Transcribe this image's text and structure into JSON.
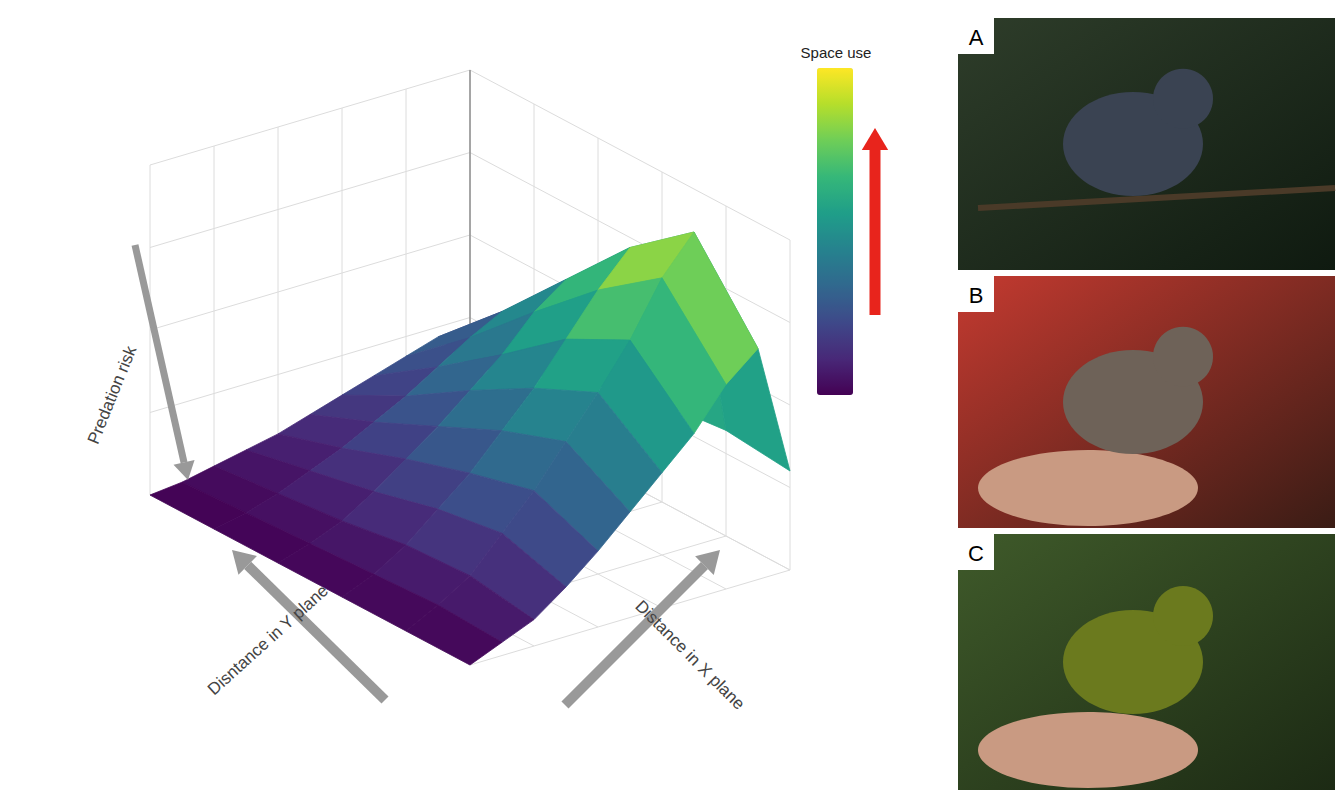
{
  "chart_data": {
    "type": "surface3d",
    "x": [
      0,
      0.1,
      0.2,
      0.3,
      0.4,
      0.5,
      0.6,
      0.7,
      0.8,
      0.9,
      1
    ],
    "y": [
      0,
      0.2,
      0.4,
      0.6,
      0.8,
      1
    ],
    "z": [
      [
        0,
        0.04,
        0.08,
        0.15,
        0.23,
        0.32,
        0.41,
        0.5,
        0.62,
        0.7,
        0.3
      ],
      [
        0,
        0.05,
        0.11,
        0.21,
        0.31,
        0.43,
        0.55,
        0.68,
        0.84,
        0.95,
        0.32
      ],
      [
        0,
        0.04,
        0.1,
        0.18,
        0.26,
        0.36,
        0.46,
        0.58,
        0.7,
        0.8,
        0.3
      ],
      [
        0,
        0.03,
        0.07,
        0.13,
        0.2,
        0.27,
        0.35,
        0.43,
        0.53,
        0.6,
        0.25
      ],
      [
        0,
        0.02,
        0.05,
        0.09,
        0.13,
        0.18,
        0.23,
        0.29,
        0.35,
        0.4,
        0.18
      ],
      [
        0,
        0.01,
        0.03,
        0.05,
        0.07,
        0.1,
        0.13,
        0.16,
        0.19,
        0.22,
        0.1
      ]
    ],
    "xlim": [
      0,
      1
    ],
    "ylim": [
      0,
      1
    ],
    "zlim": [
      0,
      1
    ],
    "xticks": [
      0,
      0.2,
      0.4,
      0.6,
      0.8,
      1
    ],
    "yticks": [
      0,
      0.2,
      0.4,
      0.6,
      0.8,
      1
    ],
    "zticks": [
      0,
      0.25,
      0.5,
      0.75,
      1
    ],
    "x_label": "Distance in X plane",
    "y_label": "Disntance in Y plane",
    "z_label": "Predation risk",
    "colorbar": {
      "title": "Space use",
      "range": [
        0,
        1
      ]
    },
    "tick_labels": false,
    "grid": true
  },
  "panels": [
    {
      "label": "A"
    },
    {
      "label": "B"
    },
    {
      "label": "C"
    }
  ]
}
